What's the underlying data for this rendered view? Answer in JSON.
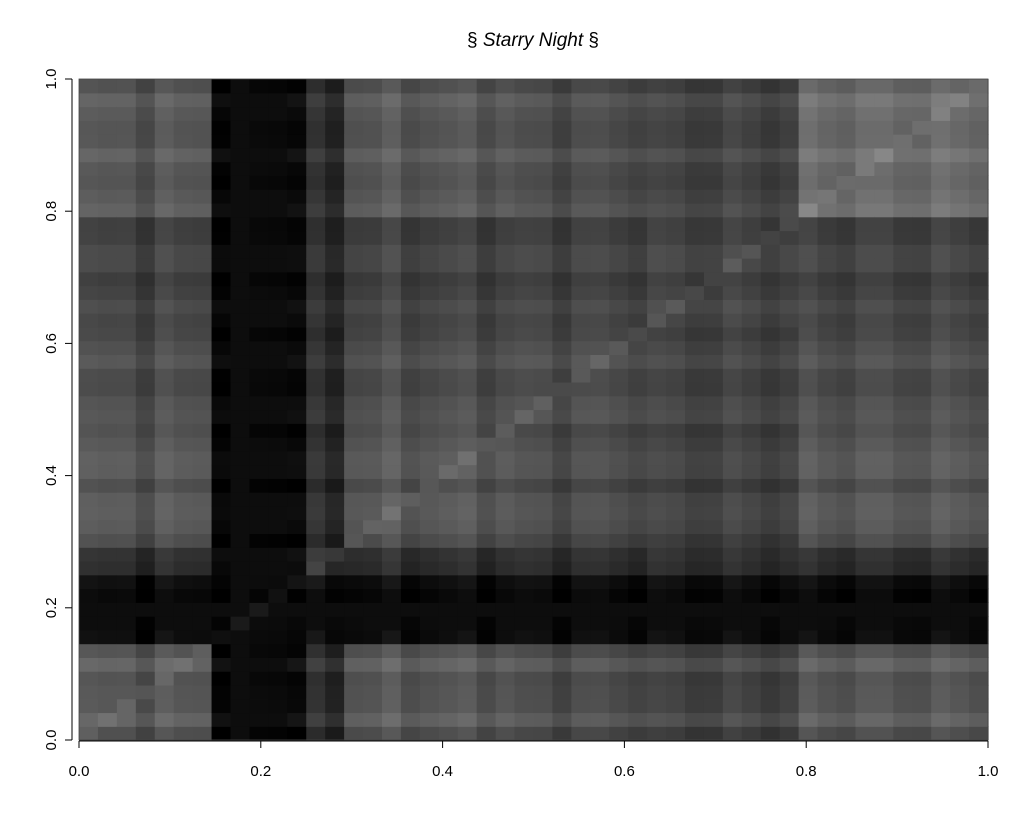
{
  "chart_data": {
    "type": "heatmap",
    "title_prefix": "§ ",
    "title_main": "Starry Night",
    "title_suffix": " §",
    "xlabel": "",
    "ylabel": "",
    "xlim": [
      0,
      1
    ],
    "ylim": [
      0,
      1
    ],
    "x_ticks": [
      "0.0",
      "0.2",
      "0.4",
      "0.6",
      "0.8",
      "1.0"
    ],
    "y_ticks": [
      "0.0",
      "0.2",
      "0.4",
      "0.6",
      "0.8",
      "1.0"
    ],
    "colormap": "grayscale",
    "grid": false,
    "diagonal_highlight": true,
    "bands": [
      {
        "from": 0.0,
        "to": 0.15,
        "level": 0.34
      },
      {
        "from": 0.15,
        "to": 0.24,
        "level": 0.06
      },
      {
        "from": 0.24,
        "to": 0.3,
        "level": 0.16
      },
      {
        "from": 0.3,
        "to": 0.47,
        "level": 0.34
      },
      {
        "from": 0.47,
        "to": 0.62,
        "level": 0.3
      },
      {
        "from": 0.62,
        "to": 0.8,
        "level": 0.26
      },
      {
        "from": 0.8,
        "to": 1.0,
        "level": 0.42
      }
    ],
    "core_band_center": 0.19,
    "core_band_level": 0.02
  }
}
